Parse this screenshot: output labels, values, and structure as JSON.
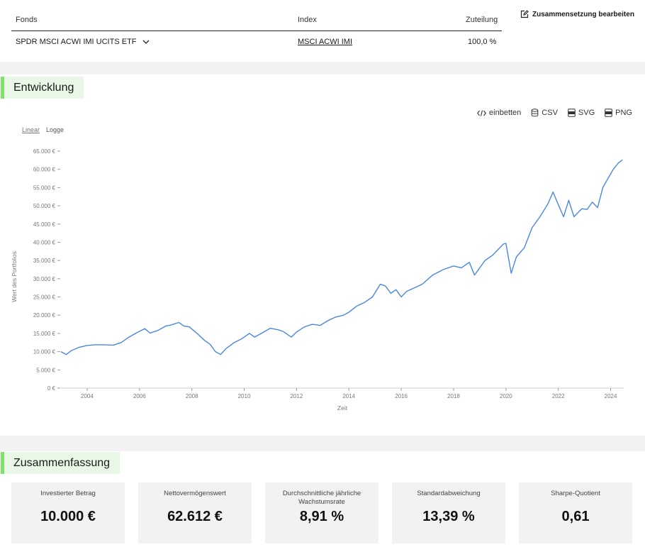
{
  "table": {
    "headers": {
      "fund": "Fonds",
      "index": "Index",
      "allocation": "Zuteilung"
    },
    "row": {
      "fund": "SPDR MSCI ACWI IMI UCITS ETF",
      "index": "MSCI ACWI IMI",
      "allocation": "100,0 %"
    }
  },
  "edit_label": "Zusammensetzung bearbeiten",
  "development": {
    "title": "Entwicklung",
    "tools": {
      "embed": "einbetten",
      "csv": "CSV",
      "svg": "SVG",
      "png": "PNG"
    },
    "scale": {
      "linear": "Linear",
      "log": "Logge"
    }
  },
  "summary": {
    "title": "Zusammenfassung",
    "cards": [
      {
        "label": "Investierter Betrag",
        "value": "10.000 €"
      },
      {
        "label": "Nettovermögenswert",
        "value": "62.612 €"
      },
      {
        "label": "Durchschnittliche jährliche Wachstumsrate",
        "value": "8,91 %"
      },
      {
        "label": "Standardabweichung",
        "value": "13,39 %"
      },
      {
        "label": "Sharpe-Quotient",
        "value": "0,61"
      }
    ]
  },
  "colors": {
    "line": "#4a86e0",
    "accent": "#7ee36a",
    "accent_bg": "#e9f7e6"
  },
  "chart_data": {
    "type": "line",
    "xlabel": "Zeit",
    "ylabel": "Wert des Portfolios",
    "xlim": [
      2003.0,
      2024.5
    ],
    "ylim": [
      0,
      65000
    ],
    "x_ticks": [
      2004,
      2006,
      2008,
      2010,
      2012,
      2014,
      2016,
      2018,
      2020,
      2022,
      2024
    ],
    "x_tick_labels": [
      "2004",
      "2006",
      "2008",
      "2010",
      "2012",
      "2014",
      "2016",
      "2018",
      "2020",
      "2022",
      "2024"
    ],
    "y_ticks": [
      0,
      5000,
      10000,
      15000,
      20000,
      25000,
      30000,
      35000,
      40000,
      45000,
      50000,
      55000,
      60000,
      65000
    ],
    "y_tick_labels": [
      "0 €",
      "5.000 €",
      "10.000 €",
      "15.000 €",
      "20.000 €",
      "25.000 €",
      "30.000 €",
      "35.000 €",
      "40.000 €",
      "45.000 €",
      "50.000 €",
      "55.000 €",
      "60.000 €",
      "65.000 €"
    ],
    "series": [
      {
        "x": [
          2003.0,
          2003.2,
          2003.4,
          2003.7,
          2004.0,
          2004.3,
          2004.6,
          2005.0,
          2005.3,
          2005.6,
          2005.9,
          2006.2,
          2006.4,
          2006.7,
          2007.0,
          2007.2,
          2007.5,
          2007.7,
          2007.9,
          2008.2,
          2008.5,
          2008.7,
          2008.9,
          2009.1,
          2009.3,
          2009.6,
          2009.9,
          2010.2,
          2010.4,
          2010.7,
          2011.0,
          2011.3,
          2011.5,
          2011.8,
          2012.0,
          2012.3,
          2012.6,
          2012.9,
          2013.2,
          2013.5,
          2013.8,
          2014.0,
          2014.3,
          2014.6,
          2014.9,
          2015.2,
          2015.4,
          2015.6,
          2015.8,
          2016.0,
          2016.2,
          2016.5,
          2016.8,
          2017.2,
          2017.6,
          2018.0,
          2018.3,
          2018.6,
          2018.8,
          2019.0,
          2019.2,
          2019.5,
          2019.9,
          2020.0,
          2020.2,
          2020.4,
          2020.7,
          2021.0,
          2021.3,
          2021.6,
          2021.8,
          2021.9,
          2022.2,
          2022.4,
          2022.6,
          2022.8,
          2022.9,
          2023.1,
          2023.3,
          2023.5,
          2023.7,
          2023.9,
          2024.1,
          2024.3,
          2024.45
        ],
        "y": [
          10000,
          9200,
          10300,
          11200,
          11700,
          11900,
          11900,
          11800,
          12500,
          14000,
          15200,
          16300,
          15100,
          15800,
          17000,
          17300,
          18000,
          17000,
          16800,
          15000,
          13000,
          12000,
          10000,
          9200,
          10800,
          12400,
          13500,
          15000,
          14000,
          15200,
          16400,
          16000,
          15500,
          14000,
          15400,
          16800,
          17500,
          17200,
          18500,
          19500,
          20000,
          20800,
          22500,
          23500,
          25000,
          28500,
          28000,
          26000,
          27000,
          25000,
          26500,
          27500,
          28500,
          31000,
          32500,
          33500,
          33000,
          34500,
          31000,
          33000,
          35000,
          36500,
          39500,
          39700,
          31500,
          36000,
          38500,
          44000,
          47000,
          50500,
          53800,
          52000,
          47000,
          51500,
          47000,
          48500,
          49200,
          49000,
          51000,
          49500,
          55000,
          57500,
          60000,
          61800,
          62612
        ]
      }
    ]
  }
}
